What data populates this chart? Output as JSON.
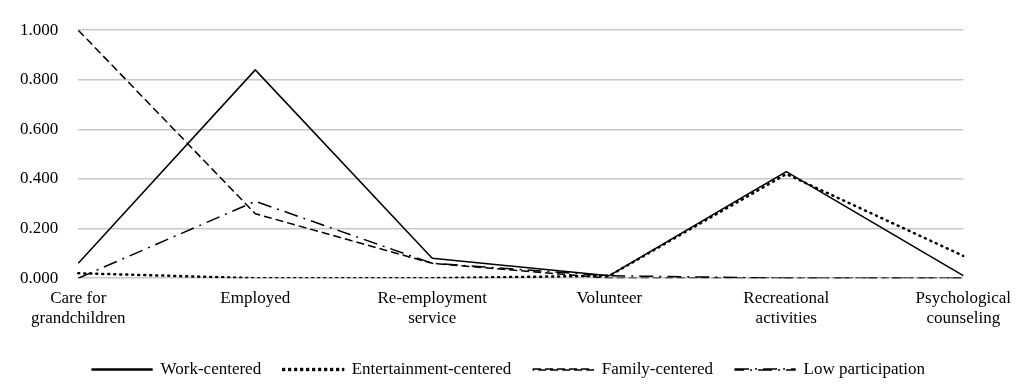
{
  "chart_data": {
    "type": "line",
    "categories": [
      "Care for grandchildren",
      "Employed",
      "Re-employment service",
      "Volunteer",
      "Recreational activities",
      "Psychological counseling"
    ],
    "series": [
      {
        "name": "Work-centered",
        "color": "#000000",
        "line_style": "solid",
        "values": [
          0.06,
          0.84,
          0.08,
          0.01,
          0.43,
          0.01
        ]
      },
      {
        "name": "Entertainment-centered",
        "color": "#000000",
        "line_style": "dotted",
        "values": [
          0.02,
          0.0,
          0.0,
          0.01,
          0.42,
          0.09
        ]
      },
      {
        "name": "Family-centered",
        "color": "#000000",
        "line_style": "dashed",
        "values": [
          1.0,
          0.26,
          0.06,
          0.0,
          0.0,
          0.0
        ]
      },
      {
        "name": "Low participation",
        "color": "#000000",
        "line_style": "dashdot",
        "values": [
          0.0,
          0.31,
          0.06,
          0.01,
          0.0,
          0.0
        ]
      }
    ],
    "ylim": [
      0,
      1
    ],
    "yticks": [
      {
        "value": 0,
        "label": "0.000"
      },
      {
        "value": 0.2,
        "label": "0.200"
      },
      {
        "value": 0.4,
        "label": "0.400"
      },
      {
        "value": 0.6,
        "label": "0.600"
      },
      {
        "value": 0.8,
        "label": "0.800"
      },
      {
        "value": 1,
        "label": "1.000"
      }
    ],
    "grid": "y",
    "legend": "bottom",
    "marker": "none"
  }
}
